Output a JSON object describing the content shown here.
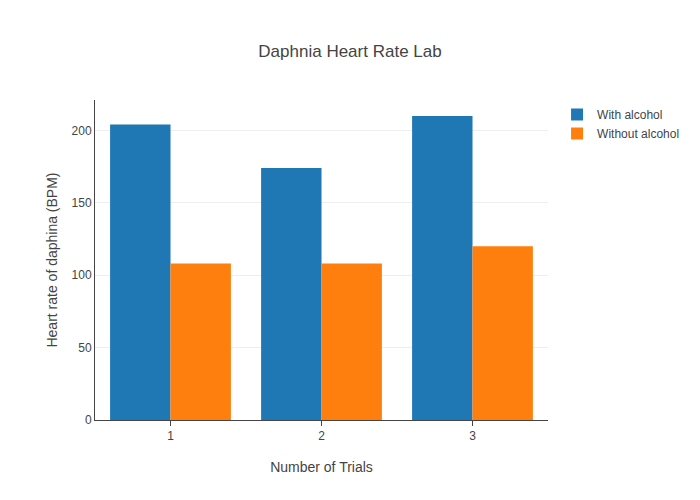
{
  "chart_data": {
    "type": "bar",
    "title": "Daphnia Heart Rate Lab",
    "x_label": "Number of Trials",
    "y_label": "Heart rate of daphina (BPM)",
    "categories": [
      "1",
      "2",
      "3"
    ],
    "series": [
      {
        "name": "With alcohol",
        "color": "#1f77b4",
        "values": [
          204,
          174,
          210
        ]
      },
      {
        "name": "Without alcohol",
        "color": "#ff7f0e",
        "values": [
          108,
          108,
          120
        ]
      }
    ],
    "ylim": [
      0,
      221
    ],
    "yticks": [
      0,
      50,
      100,
      150,
      200
    ],
    "grid": true,
    "legend": "top right"
  }
}
